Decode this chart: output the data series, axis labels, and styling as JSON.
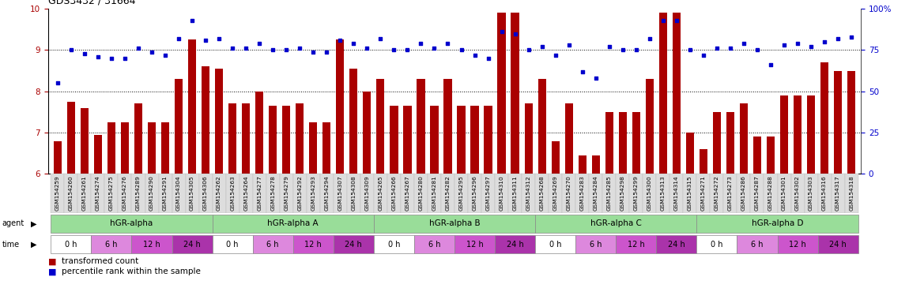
{
  "title": "GDS3432 / 31664",
  "samples": [
    "GSM154259",
    "GSM154260",
    "GSM154261",
    "GSM154274",
    "GSM154275",
    "GSM154276",
    "GSM154289",
    "GSM154290",
    "GSM154291",
    "GSM154304",
    "GSM154305",
    "GSM154306",
    "GSM154262",
    "GSM154263",
    "GSM154264",
    "GSM154277",
    "GSM154278",
    "GSM154279",
    "GSM154292",
    "GSM154293",
    "GSM154294",
    "GSM154307",
    "GSM154308",
    "GSM154309",
    "GSM154265",
    "GSM154266",
    "GSM154267",
    "GSM154280",
    "GSM154281",
    "GSM154282",
    "GSM154295",
    "GSM154296",
    "GSM154297",
    "GSM154310",
    "GSM154311",
    "GSM154312",
    "GSM154268",
    "GSM154269",
    "GSM154270",
    "GSM154283",
    "GSM154284",
    "GSM154285",
    "GSM154298",
    "GSM154299",
    "GSM154300",
    "GSM154313",
    "GSM154314",
    "GSM154315",
    "GSM154271",
    "GSM154272",
    "GSM154273",
    "GSM154286",
    "GSM154287",
    "GSM154288",
    "GSM154301",
    "GSM154302",
    "GSM154303",
    "GSM154316",
    "GSM154317",
    "GSM154318"
  ],
  "red_values": [
    6.8,
    7.75,
    7.6,
    6.95,
    7.25,
    7.25,
    7.7,
    7.25,
    7.25,
    8.3,
    9.25,
    8.6,
    8.55,
    7.7,
    7.7,
    8.0,
    7.65,
    7.65,
    7.7,
    7.25,
    7.25,
    9.25,
    8.55,
    8.0,
    8.3,
    7.65,
    7.65,
    8.3,
    7.65,
    8.3,
    7.65,
    7.65,
    7.65,
    9.9,
    9.9,
    7.7,
    8.3,
    6.8,
    7.7,
    6.45,
    6.45,
    7.5,
    7.5,
    7.5,
    8.3,
    9.9,
    9.9,
    7.0,
    6.6,
    7.5,
    7.5,
    7.7,
    6.9,
    6.9,
    7.9,
    7.9,
    7.9,
    8.7,
    8.5,
    8.5
  ],
  "blue_pct": [
    55,
    75,
    73,
    71,
    70,
    70,
    76,
    74,
    72,
    82,
    93,
    81,
    82,
    76,
    76,
    79,
    75,
    75,
    76,
    74,
    74,
    81,
    79,
    76,
    82,
    75,
    75,
    79,
    76,
    79,
    75,
    72,
    70,
    86,
    85,
    75,
    77,
    72,
    78,
    62,
    58,
    77,
    75,
    75,
    82,
    93,
    93,
    75,
    72,
    76,
    76,
    79,
    75,
    66,
    78,
    79,
    77,
    80,
    82,
    83
  ],
  "ylim_left": [
    6,
    10
  ],
  "ylim_right": [
    0,
    100
  ],
  "yticks_left": [
    6,
    7,
    8,
    9,
    10
  ],
  "yticks_right": [
    0,
    25,
    50,
    75,
    100
  ],
  "bar_color": "#aa0000",
  "dot_color": "#0000cc",
  "agents": [
    {
      "label": "hGR-alpha",
      "start": 0,
      "end": 12
    },
    {
      "label": "hGR-alpha A",
      "start": 12,
      "end": 24
    },
    {
      "label": "hGR-alpha B",
      "start": 24,
      "end": 36
    },
    {
      "label": "hGR-alpha C",
      "start": 36,
      "end": 48
    },
    {
      "label": "hGR-alpha D",
      "start": 48,
      "end": 60
    }
  ],
  "times": [
    {
      "label": "0 h",
      "start": 0,
      "end": 3,
      "color": "#ffffff"
    },
    {
      "label": "6 h",
      "start": 3,
      "end": 6,
      "color": "#dd88dd"
    },
    {
      "label": "12 h",
      "start": 6,
      "end": 9,
      "color": "#cc55cc"
    },
    {
      "label": "24 h",
      "start": 9,
      "end": 12,
      "color": "#aa33aa"
    },
    {
      "label": "0 h",
      "start": 12,
      "end": 15,
      "color": "#ffffff"
    },
    {
      "label": "6 h",
      "start": 15,
      "end": 18,
      "color": "#dd88dd"
    },
    {
      "label": "12 h",
      "start": 18,
      "end": 21,
      "color": "#cc55cc"
    },
    {
      "label": "24 h",
      "start": 21,
      "end": 24,
      "color": "#aa33aa"
    },
    {
      "label": "0 h",
      "start": 24,
      "end": 27,
      "color": "#ffffff"
    },
    {
      "label": "6 h",
      "start": 27,
      "end": 30,
      "color": "#dd88dd"
    },
    {
      "label": "12 h",
      "start": 30,
      "end": 33,
      "color": "#cc55cc"
    },
    {
      "label": "24 h",
      "start": 33,
      "end": 36,
      "color": "#aa33aa"
    },
    {
      "label": "0 h",
      "start": 36,
      "end": 39,
      "color": "#ffffff"
    },
    {
      "label": "6 h",
      "start": 39,
      "end": 42,
      "color": "#dd88dd"
    },
    {
      "label": "12 h",
      "start": 42,
      "end": 45,
      "color": "#cc55cc"
    },
    {
      "label": "24 h",
      "start": 45,
      "end": 48,
      "color": "#aa33aa"
    },
    {
      "label": "0 h",
      "start": 48,
      "end": 51,
      "color": "#ffffff"
    },
    {
      "label": "6 h",
      "start": 51,
      "end": 54,
      "color": "#dd88dd"
    },
    {
      "label": "12 h",
      "start": 54,
      "end": 57,
      "color": "#cc55cc"
    },
    {
      "label": "24 h",
      "start": 57,
      "end": 60,
      "color": "#aa33aa"
    }
  ],
  "agent_color": "#99dd99",
  "legend_red": "transformed count",
  "legend_blue": "percentile rank within the sample",
  "background_color": "#ffffff"
}
